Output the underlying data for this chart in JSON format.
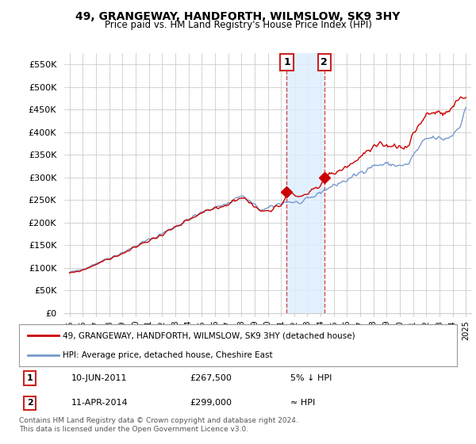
{
  "title": "49, GRANGEWAY, HANDFORTH, WILMSLOW, SK9 3HY",
  "subtitle": "Price paid vs. HM Land Registry's House Price Index (HPI)",
  "ylim": [
    0,
    575000
  ],
  "yticks": [
    0,
    50000,
    100000,
    150000,
    200000,
    250000,
    300000,
    350000,
    400000,
    450000,
    500000,
    550000
  ],
  "ytick_labels": [
    "£0",
    "£50K",
    "£100K",
    "£150K",
    "£200K",
    "£250K",
    "£300K",
    "£350K",
    "£400K",
    "£450K",
    "£500K",
    "£550K"
  ],
  "hpi_color": "#7799cc",
  "price_color": "#cc0000",
  "vline_color": "#cc0000",
  "vspan_color": "#ddeeff",
  "background_color": "#ffffff",
  "grid_color": "#cccccc",
  "legend_entry1": "49, GRANGEWAY, HANDFORTH, WILMSLOW, SK9 3HY (detached house)",
  "legend_entry2": "HPI: Average price, detached house, Cheshire East",
  "table_row1": [
    "1",
    "10-JUN-2011",
    "£267,500",
    "5% ↓ HPI"
  ],
  "table_row2": [
    "2",
    "11-APR-2014",
    "£299,000",
    "≈ HPI"
  ],
  "footnote": "Contains HM Land Registry data © Crown copyright and database right 2024.\nThis data is licensed under the Open Government Licence v3.0.",
  "purchase1_x": 2011.44,
  "purchase1_y": 267500,
  "purchase2_x": 2014.28,
  "purchase2_y": 299000,
  "xlim_left": 1994.6,
  "xlim_right": 2025.4,
  "num_box_color": "#cc2222"
}
